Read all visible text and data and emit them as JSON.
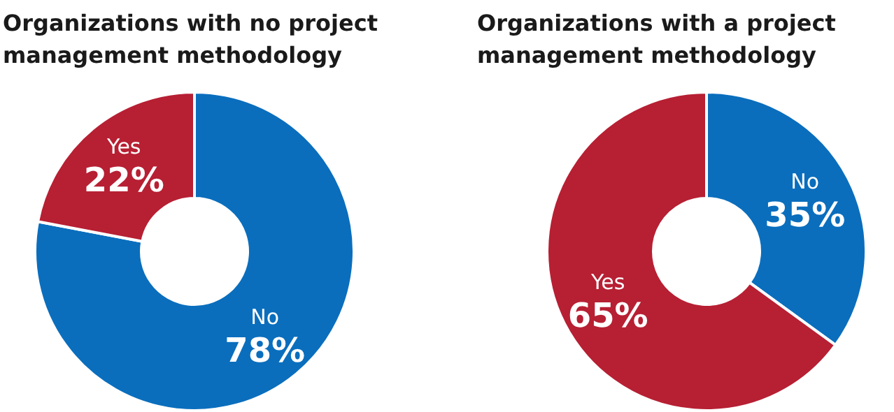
{
  "chart_data": [
    {
      "type": "donut",
      "title": "Organizations with no project management methodology",
      "categories": [
        "No",
        "Yes"
      ],
      "values": [
        78,
        22
      ],
      "colors": [
        "#0a6ebd",
        "#b71f33"
      ],
      "value_labels": [
        "78%",
        "22%"
      ]
    },
    {
      "type": "donut",
      "title": "Organizations with a project management methodology",
      "categories": [
        "No",
        "Yes"
      ],
      "values": [
        35,
        65
      ],
      "colors": [
        "#0a6ebd",
        "#b71f33"
      ],
      "value_labels": [
        "35%",
        "65%"
      ]
    }
  ]
}
